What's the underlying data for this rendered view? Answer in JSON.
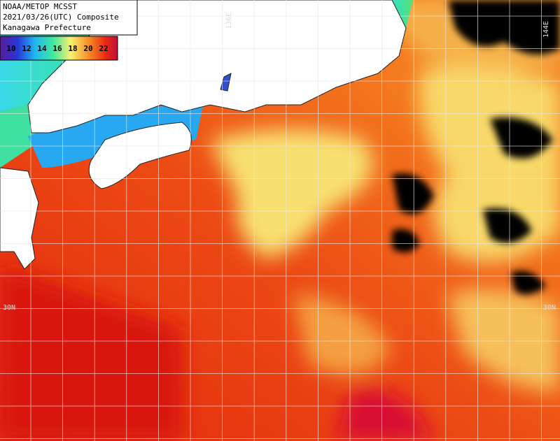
{
  "header": {
    "lines": [
      "NOAA/METOP MCSST",
      "2021/03/26(UTC) Composite",
      "Kanagawa Prefecture"
    ]
  },
  "legend": {
    "labels": [
      10,
      12,
      14,
      16,
      18,
      20,
      22
    ]
  },
  "grid_labels": {
    "lon_left": "136E",
    "lon_right": "144E",
    "lat_left": "30N",
    "lat_right": "30N"
  }
}
